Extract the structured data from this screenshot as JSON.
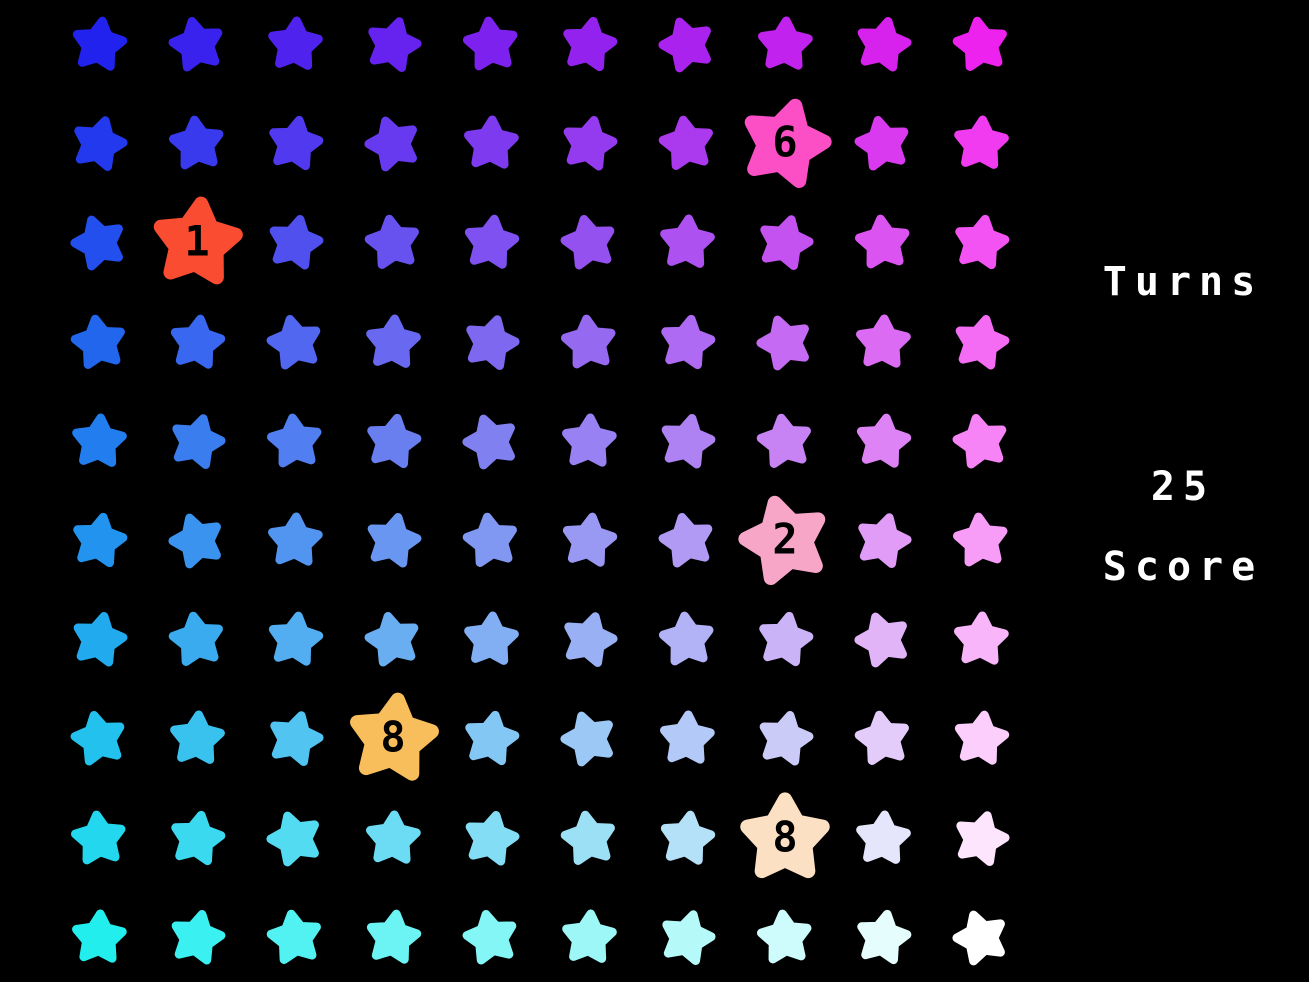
{
  "screen": {
    "background": "#000000"
  },
  "hud": {
    "turns_label": "Turns",
    "turns_value": "25",
    "score_label": "Score",
    "text_color": "#ffffff"
  },
  "board": {
    "rows": 10,
    "cols": 10,
    "gradient_corners": {
      "top_left": "#2222ee",
      "top_right": "#ee22ee",
      "bottom_left": "#22eeee",
      "bottom_right": "#ffffff"
    },
    "special_star_values": [
      "6",
      "1",
      "2",
      "8",
      "8"
    ],
    "stars": [
      {
        "r": 0,
        "c": 0,
        "color": "#2222ee",
        "rot": 8
      },
      {
        "r": 0,
        "c": 1,
        "color": "#3922ee",
        "rot": -12
      },
      {
        "r": 0,
        "c": 2,
        "color": "#4f22ee",
        "rot": 4
      },
      {
        "r": 0,
        "c": 3,
        "color": "#6622ee",
        "rot": 15
      },
      {
        "r": 0,
        "c": 4,
        "color": "#7d22ee",
        "rot": -6
      },
      {
        "r": 0,
        "c": 5,
        "color": "#9322ee",
        "rot": 10
      },
      {
        "r": 0,
        "c": 6,
        "color": "#aa22ee",
        "rot": -18
      },
      {
        "r": 0,
        "c": 7,
        "color": "#c122ee",
        "rot": 3
      },
      {
        "r": 0,
        "c": 8,
        "color": "#d722ee",
        "rot": 12
      },
      {
        "r": 0,
        "c": 9,
        "color": "#ee22ee",
        "rot": -9
      },
      {
        "r": 1,
        "c": 0,
        "color": "#2239ee",
        "rot": 15
      },
      {
        "r": 1,
        "c": 1,
        "color": "#3939ee",
        "rot": -6
      },
      {
        "r": 1,
        "c": 2,
        "color": "#5039ee",
        "rot": 10
      },
      {
        "r": 1,
        "c": 3,
        "color": "#6739ef",
        "rot": -18
      },
      {
        "r": 1,
        "c": 4,
        "color": "#7d3aef",
        "rot": 3
      },
      {
        "r": 1,
        "c": 5,
        "color": "#943aef",
        "rot": 12
      },
      {
        "r": 1,
        "c": 6,
        "color": "#ab3aef",
        "rot": -9
      },
      {
        "r": 1,
        "c": 7,
        "color": "#fc4fc5",
        "rot": 15,
        "value": "6",
        "large": true
      },
      {
        "r": 1,
        "c": 8,
        "color": "#d93af0",
        "rot": -12
      },
      {
        "r": 1,
        "c": 9,
        "color": "#f03bf0",
        "rot": 4
      },
      {
        "r": 2,
        "c": 0,
        "color": "#224fee",
        "rot": -18
      },
      {
        "r": 2,
        "c": 1,
        "color": "#f94c31",
        "rot": 6,
        "value": "1",
        "large": true
      },
      {
        "r": 2,
        "c": 2,
        "color": "#5050ef",
        "rot": 12
      },
      {
        "r": 2,
        "c": 3,
        "color": "#6751ef",
        "rot": -9
      },
      {
        "r": 2,
        "c": 4,
        "color": "#7e51f0",
        "rot": 8
      },
      {
        "r": 2,
        "c": 5,
        "color": "#9551f0",
        "rot": -12
      },
      {
        "r": 2,
        "c": 6,
        "color": "#ad52f1",
        "rot": 4
      },
      {
        "r": 2,
        "c": 7,
        "color": "#c452f1",
        "rot": 15
      },
      {
        "r": 2,
        "c": 8,
        "color": "#db53f1",
        "rot": -6
      },
      {
        "r": 2,
        "c": 9,
        "color": "#f253f2",
        "rot": 10
      },
      {
        "r": 3,
        "c": 0,
        "color": "#2266ee",
        "rot": -9
      },
      {
        "r": 3,
        "c": 1,
        "color": "#3967ef",
        "rot": 8
      },
      {
        "r": 3,
        "c": 2,
        "color": "#5167ef",
        "rot": -12
      },
      {
        "r": 3,
        "c": 3,
        "color": "#6868f0",
        "rot": 4
      },
      {
        "r": 3,
        "c": 4,
        "color": "#7f68f0",
        "rot": 15
      },
      {
        "r": 3,
        "c": 5,
        "color": "#9669f1",
        "rot": -6
      },
      {
        "r": 3,
        "c": 6,
        "color": "#ae6af2",
        "rot": 10
      },
      {
        "r": 3,
        "c": 7,
        "color": "#c56af2",
        "rot": -18
      },
      {
        "r": 3,
        "c": 8,
        "color": "#dc6bf3",
        "rot": 3
      },
      {
        "r": 3,
        "c": 9,
        "color": "#f46cf4",
        "rot": 12
      },
      {
        "r": 4,
        "c": 0,
        "color": "#227dee",
        "rot": 4
      },
      {
        "r": 4,
        "c": 1,
        "color": "#3a7def",
        "rot": 15
      },
      {
        "r": 4,
        "c": 2,
        "color": "#517ef0",
        "rot": -6
      },
      {
        "r": 4,
        "c": 3,
        "color": "#697ff0",
        "rot": 10
      },
      {
        "r": 4,
        "c": 4,
        "color": "#8080f1",
        "rot": -18
      },
      {
        "r": 4,
        "c": 5,
        "color": "#9881f2",
        "rot": 3
      },
      {
        "r": 4,
        "c": 6,
        "color": "#af82f3",
        "rot": 12
      },
      {
        "r": 4,
        "c": 7,
        "color": "#c783f4",
        "rot": -9
      },
      {
        "r": 4,
        "c": 8,
        "color": "#de83f5",
        "rot": 8
      },
      {
        "r": 4,
        "c": 9,
        "color": "#f684f6",
        "rot": -12
      },
      {
        "r": 5,
        "c": 0,
        "color": "#2293ee",
        "rot": 10
      },
      {
        "r": 5,
        "c": 1,
        "color": "#3a94ef",
        "rot": -18
      },
      {
        "r": 5,
        "c": 2,
        "color": "#5195f0",
        "rot": 3
      },
      {
        "r": 5,
        "c": 3,
        "color": "#6996f1",
        "rot": 12
      },
      {
        "r": 5,
        "c": 4,
        "color": "#8198f2",
        "rot": -9
      },
      {
        "r": 5,
        "c": 5,
        "color": "#9999f3",
        "rot": 8
      },
      {
        "r": 5,
        "c": 6,
        "color": "#b09af4",
        "rot": -12
      },
      {
        "r": 5,
        "c": 7,
        "color": "#f8a6c8",
        "rot": -15,
        "value": "2",
        "large": true
      },
      {
        "r": 5,
        "c": 8,
        "color": "#e09cf6",
        "rot": 15
      },
      {
        "r": 5,
        "c": 9,
        "color": "#f79df7",
        "rot": -6
      },
      {
        "r": 6,
        "c": 0,
        "color": "#22aaee",
        "rot": 12
      },
      {
        "r": 6,
        "c": 1,
        "color": "#3aabef",
        "rot": -9
      },
      {
        "r": 6,
        "c": 2,
        "color": "#52adf1",
        "rot": 8
      },
      {
        "r": 6,
        "c": 3,
        "color": "#6aaef2",
        "rot": -12
      },
      {
        "r": 6,
        "c": 4,
        "color": "#82aff3",
        "rot": 4
      },
      {
        "r": 6,
        "c": 5,
        "color": "#9ab0f4",
        "rot": 15
      },
      {
        "r": 6,
        "c": 6,
        "color": "#b2b2f6",
        "rot": -6
      },
      {
        "r": 6,
        "c": 7,
        "color": "#cab3f7",
        "rot": 10
      },
      {
        "r": 6,
        "c": 8,
        "color": "#e1b4f8",
        "rot": -18
      },
      {
        "r": 6,
        "c": 9,
        "color": "#f9b5f9",
        "rot": 3
      },
      {
        "r": 7,
        "c": 0,
        "color": "#22c1ee",
        "rot": -12
      },
      {
        "r": 7,
        "c": 1,
        "color": "#3ac2ef",
        "rot": 4
      },
      {
        "r": 7,
        "c": 2,
        "color": "#52c4f1",
        "rot": 15
      },
      {
        "r": 7,
        "c": 3,
        "color": "#f9be5c",
        "rot": 7,
        "value": "8",
        "large": true
      },
      {
        "r": 7,
        "c": 4,
        "color": "#83c7f4",
        "rot": 10
      },
      {
        "r": 7,
        "c": 5,
        "color": "#9bc8f5",
        "rot": -18
      },
      {
        "r": 7,
        "c": 6,
        "color": "#b3c9f7",
        "rot": 3
      },
      {
        "r": 7,
        "c": 7,
        "color": "#cbcbf8",
        "rot": 12
      },
      {
        "r": 7,
        "c": 8,
        "color": "#e3ccfa",
        "rot": -9
      },
      {
        "r": 7,
        "c": 9,
        "color": "#fbcefb",
        "rot": 8
      },
      {
        "r": 8,
        "c": 0,
        "color": "#22d7ee",
        "rot": -6
      },
      {
        "r": 8,
        "c": 1,
        "color": "#3ad9f0",
        "rot": 10
      },
      {
        "r": 8,
        "c": 2,
        "color": "#53dbf1",
        "rot": -18
      },
      {
        "r": 8,
        "c": 3,
        "color": "#6bdcf3",
        "rot": 3
      },
      {
        "r": 8,
        "c": 4,
        "color": "#83def5",
        "rot": 12
      },
      {
        "r": 8,
        "c": 5,
        "color": "#9ce0f6",
        "rot": -9
      },
      {
        "r": 8,
        "c": 6,
        "color": "#b4e1f8",
        "rot": 8
      },
      {
        "r": 8,
        "c": 7,
        "color": "#fce0c3",
        "rot": 0,
        "value": "8",
        "large": true
      },
      {
        "r": 8,
        "c": 8,
        "color": "#e5e5fb",
        "rot": 4
      },
      {
        "r": 8,
        "c": 9,
        "color": "#fde6fd",
        "rot": 15
      },
      {
        "r": 9,
        "c": 0,
        "color": "#22eeee",
        "rot": 3
      },
      {
        "r": 9,
        "c": 1,
        "color": "#3bf0f0",
        "rot": 12
      },
      {
        "r": 9,
        "c": 2,
        "color": "#53f2f2",
        "rot": -9
      },
      {
        "r": 9,
        "c": 3,
        "color": "#6cf4f4",
        "rot": 8
      },
      {
        "r": 9,
        "c": 4,
        "color": "#84f6f6",
        "rot": -12
      },
      {
        "r": 9,
        "c": 5,
        "color": "#9df7f7",
        "rot": 4
      },
      {
        "r": 9,
        "c": 6,
        "color": "#b5f9f9",
        "rot": 15
      },
      {
        "r": 9,
        "c": 7,
        "color": "#cefbfb",
        "rot": -6
      },
      {
        "r": 9,
        "c": 8,
        "color": "#e6fdfd",
        "rot": 10
      },
      {
        "r": 9,
        "c": 9,
        "color": "#ffffff",
        "rot": -18
      }
    ]
  }
}
